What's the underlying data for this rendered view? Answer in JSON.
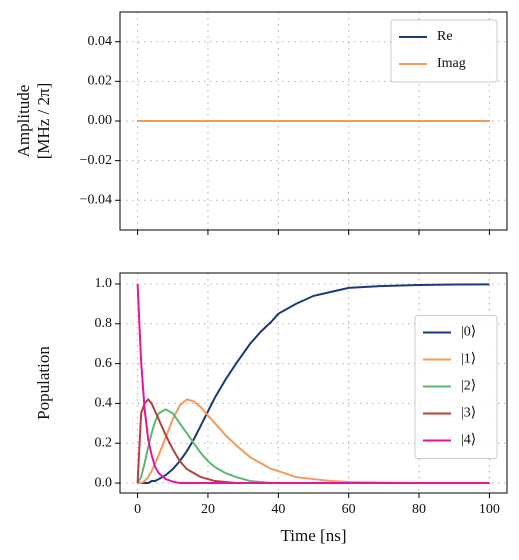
{
  "chart_data": [
    {
      "type": "line",
      "ylabel": [
        "Amplitude",
        "[MHz / 2π]"
      ],
      "x": [
        0,
        100
      ],
      "series": [
        {
          "name": "Re",
          "color": "#1b3a7a",
          "values": [
            0,
            0
          ]
        },
        {
          "name": "Imag",
          "color": "#f59a5a",
          "values": [
            0,
            0
          ]
        }
      ],
      "xlim": [
        -5,
        105
      ],
      "xticks": [
        0,
        20,
        40,
        60,
        80,
        100
      ],
      "ylim": [
        -0.055,
        0.055
      ],
      "yticks": [
        {
          "value": -0.04,
          "label": "−0.04"
        },
        {
          "value": -0.02,
          "label": "−0.02"
        },
        {
          "value": 0,
          "label": "0.00"
        },
        {
          "value": 0.02,
          "label": "0.02"
        },
        {
          "value": 0.04,
          "label": "0.04"
        }
      ],
      "grid": true,
      "legend": "upper right"
    },
    {
      "type": "line",
      "ylabel": [
        "Population"
      ],
      "xlabel": "Time [ns]",
      "x": [
        0,
        1,
        2,
        3,
        4,
        5,
        6,
        8,
        10,
        12,
        14,
        16,
        18,
        20,
        22,
        25,
        28,
        30,
        32,
        35,
        38,
        40,
        45,
        50,
        55,
        60,
        70,
        80,
        90,
        100
      ],
      "series": [
        {
          "name": "|0⟩",
          "color": "#1b3a7a",
          "values": [
            0,
            0,
            0,
            0,
            0.01,
            0.01,
            0.02,
            0.04,
            0.07,
            0.11,
            0.16,
            0.22,
            0.29,
            0.36,
            0.43,
            0.52,
            0.6,
            0.65,
            0.7,
            0.76,
            0.81,
            0.85,
            0.9,
            0.94,
            0.96,
            0.98,
            0.99,
            0.995,
            0.997,
            0.998
          ]
        },
        {
          "name": "|1⟩",
          "color": "#f59a5a",
          "values": [
            0,
            0,
            0.01,
            0.03,
            0.06,
            0.1,
            0.14,
            0.23,
            0.32,
            0.39,
            0.42,
            0.41,
            0.38,
            0.34,
            0.3,
            0.24,
            0.19,
            0.16,
            0.13,
            0.1,
            0.07,
            0.06,
            0.03,
            0.02,
            0.01,
            0.005,
            0.002,
            0,
            0,
            0
          ]
        },
        {
          "name": "|2⟩",
          "color": "#5cb86e",
          "values": [
            0,
            0.03,
            0.1,
            0.18,
            0.25,
            0.31,
            0.35,
            0.37,
            0.35,
            0.3,
            0.25,
            0.2,
            0.15,
            0.11,
            0.08,
            0.05,
            0.03,
            0.02,
            0.01,
            0.005,
            0,
            0,
            0,
            0,
            0,
            0,
            0,
            0,
            0,
            0
          ]
        },
        {
          "name": "|3⟩",
          "color": "#b8403a",
          "values": [
            0,
            0.35,
            0.4,
            0.42,
            0.4,
            0.36,
            0.32,
            0.24,
            0.17,
            0.11,
            0.07,
            0.05,
            0.03,
            0.02,
            0.01,
            0.005,
            0,
            0,
            0,
            0,
            0,
            0,
            0,
            0,
            0,
            0,
            0,
            0,
            0,
            0
          ]
        },
        {
          "name": "|4⟩",
          "color": "#e8159b",
          "values": [
            1,
            0.61,
            0.37,
            0.22,
            0.14,
            0.08,
            0.05,
            0.02,
            0.007,
            0,
            0,
            0,
            0,
            0,
            0,
            0,
            0,
            0,
            0,
            0,
            0,
            0,
            0,
            0,
            0,
            0,
            0,
            0,
            0,
            0
          ]
        }
      ],
      "xlim": [
        -5,
        105
      ],
      "xticks": [
        0,
        20,
        40,
        60,
        80,
        100
      ],
      "ylim": [
        -0.05,
        1.055
      ],
      "yticks": [
        {
          "value": 0,
          "label": "0.0"
        },
        {
          "value": 0.2,
          "label": "0.2"
        },
        {
          "value": 0.4,
          "label": "0.4"
        },
        {
          "value": 0.6,
          "label": "0.6"
        },
        {
          "value": 0.8,
          "label": "0.8"
        },
        {
          "value": 1,
          "label": "1.0"
        }
      ],
      "grid": true,
      "legend": "center right"
    }
  ]
}
